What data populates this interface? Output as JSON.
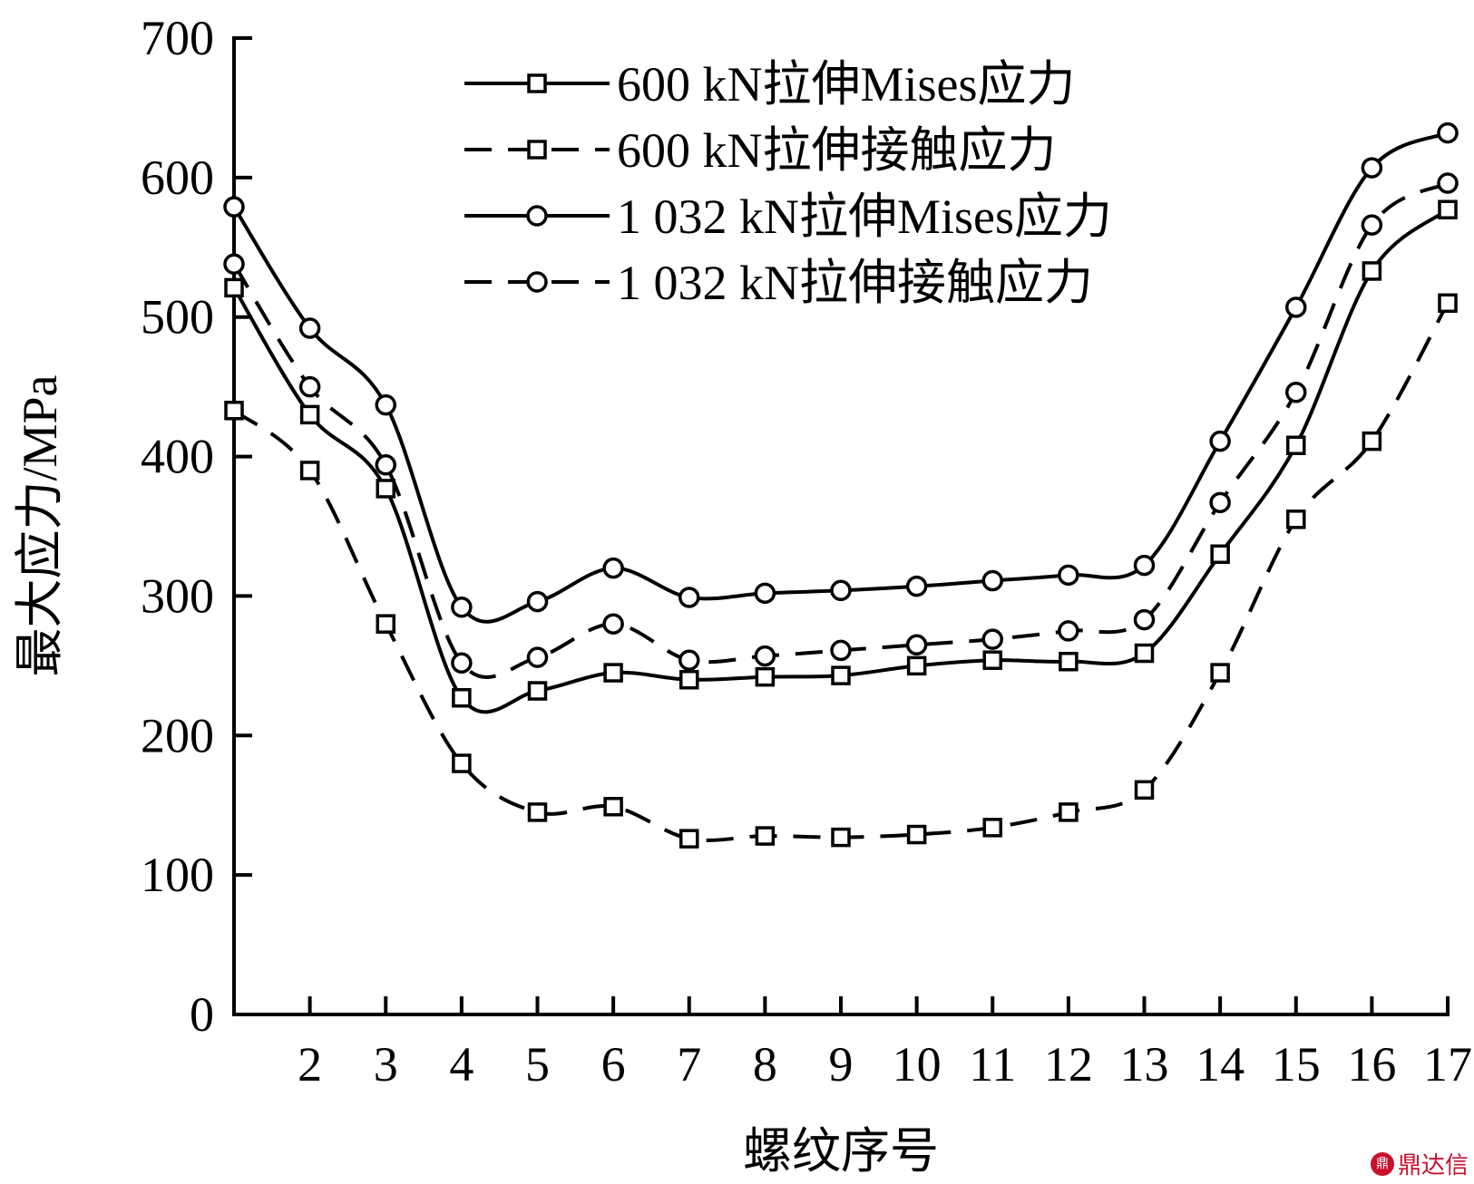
{
  "chart_data": {
    "type": "line",
    "xlabel": "螺纹序号",
    "ylabel": "最大应力/MPa",
    "x": [
      1,
      2,
      3,
      4,
      5,
      6,
      7,
      8,
      9,
      10,
      11,
      12,
      13,
      14,
      15,
      16,
      17
    ],
    "x_tick_labels": [
      "2",
      "3",
      "4",
      "5",
      "6",
      "7",
      "8",
      "9",
      "10",
      "11",
      "12",
      "13",
      "14",
      "15",
      "16",
      "17"
    ],
    "y_ticks": [
      0,
      100,
      200,
      300,
      400,
      500,
      600,
      700
    ],
    "xlim": [
      1,
      17
    ],
    "ylim": [
      0,
      700
    ],
    "grid": false,
    "legend_position": "top-center",
    "series": [
      {
        "name": "600 kN拉伸Mises应力",
        "line": "solid",
        "marker": "square",
        "values": [
          521,
          430,
          377,
          227,
          232,
          245,
          240,
          242,
          243,
          250,
          254,
          253,
          259,
          330,
          408,
          533,
          577
        ]
      },
      {
        "name": "600 kN拉伸接触应力",
        "line": "dashed",
        "marker": "square",
        "values": [
          433,
          390,
          280,
          180,
          145,
          149,
          126,
          128,
          127,
          129,
          134,
          145,
          161,
          245,
          355,
          411,
          510
        ]
      },
      {
        "name": "1 032 kN拉伸Mises应力",
        "line": "solid",
        "marker": "circle",
        "values": [
          579,
          492,
          437,
          292,
          296,
          320,
          299,
          302,
          304,
          307,
          311,
          315,
          322,
          411,
          507,
          607,
          632
        ]
      },
      {
        "name": "1 032 kN拉伸接触应力",
        "line": "dashed",
        "marker": "circle",
        "values": [
          538,
          450,
          394,
          252,
          256,
          280,
          254,
          257,
          261,
          265,
          269,
          275,
          283,
          367,
          446,
          566,
          596
        ]
      }
    ]
  },
  "watermark": {
    "logo_text": "鼎",
    "text": "鼎达信"
  }
}
